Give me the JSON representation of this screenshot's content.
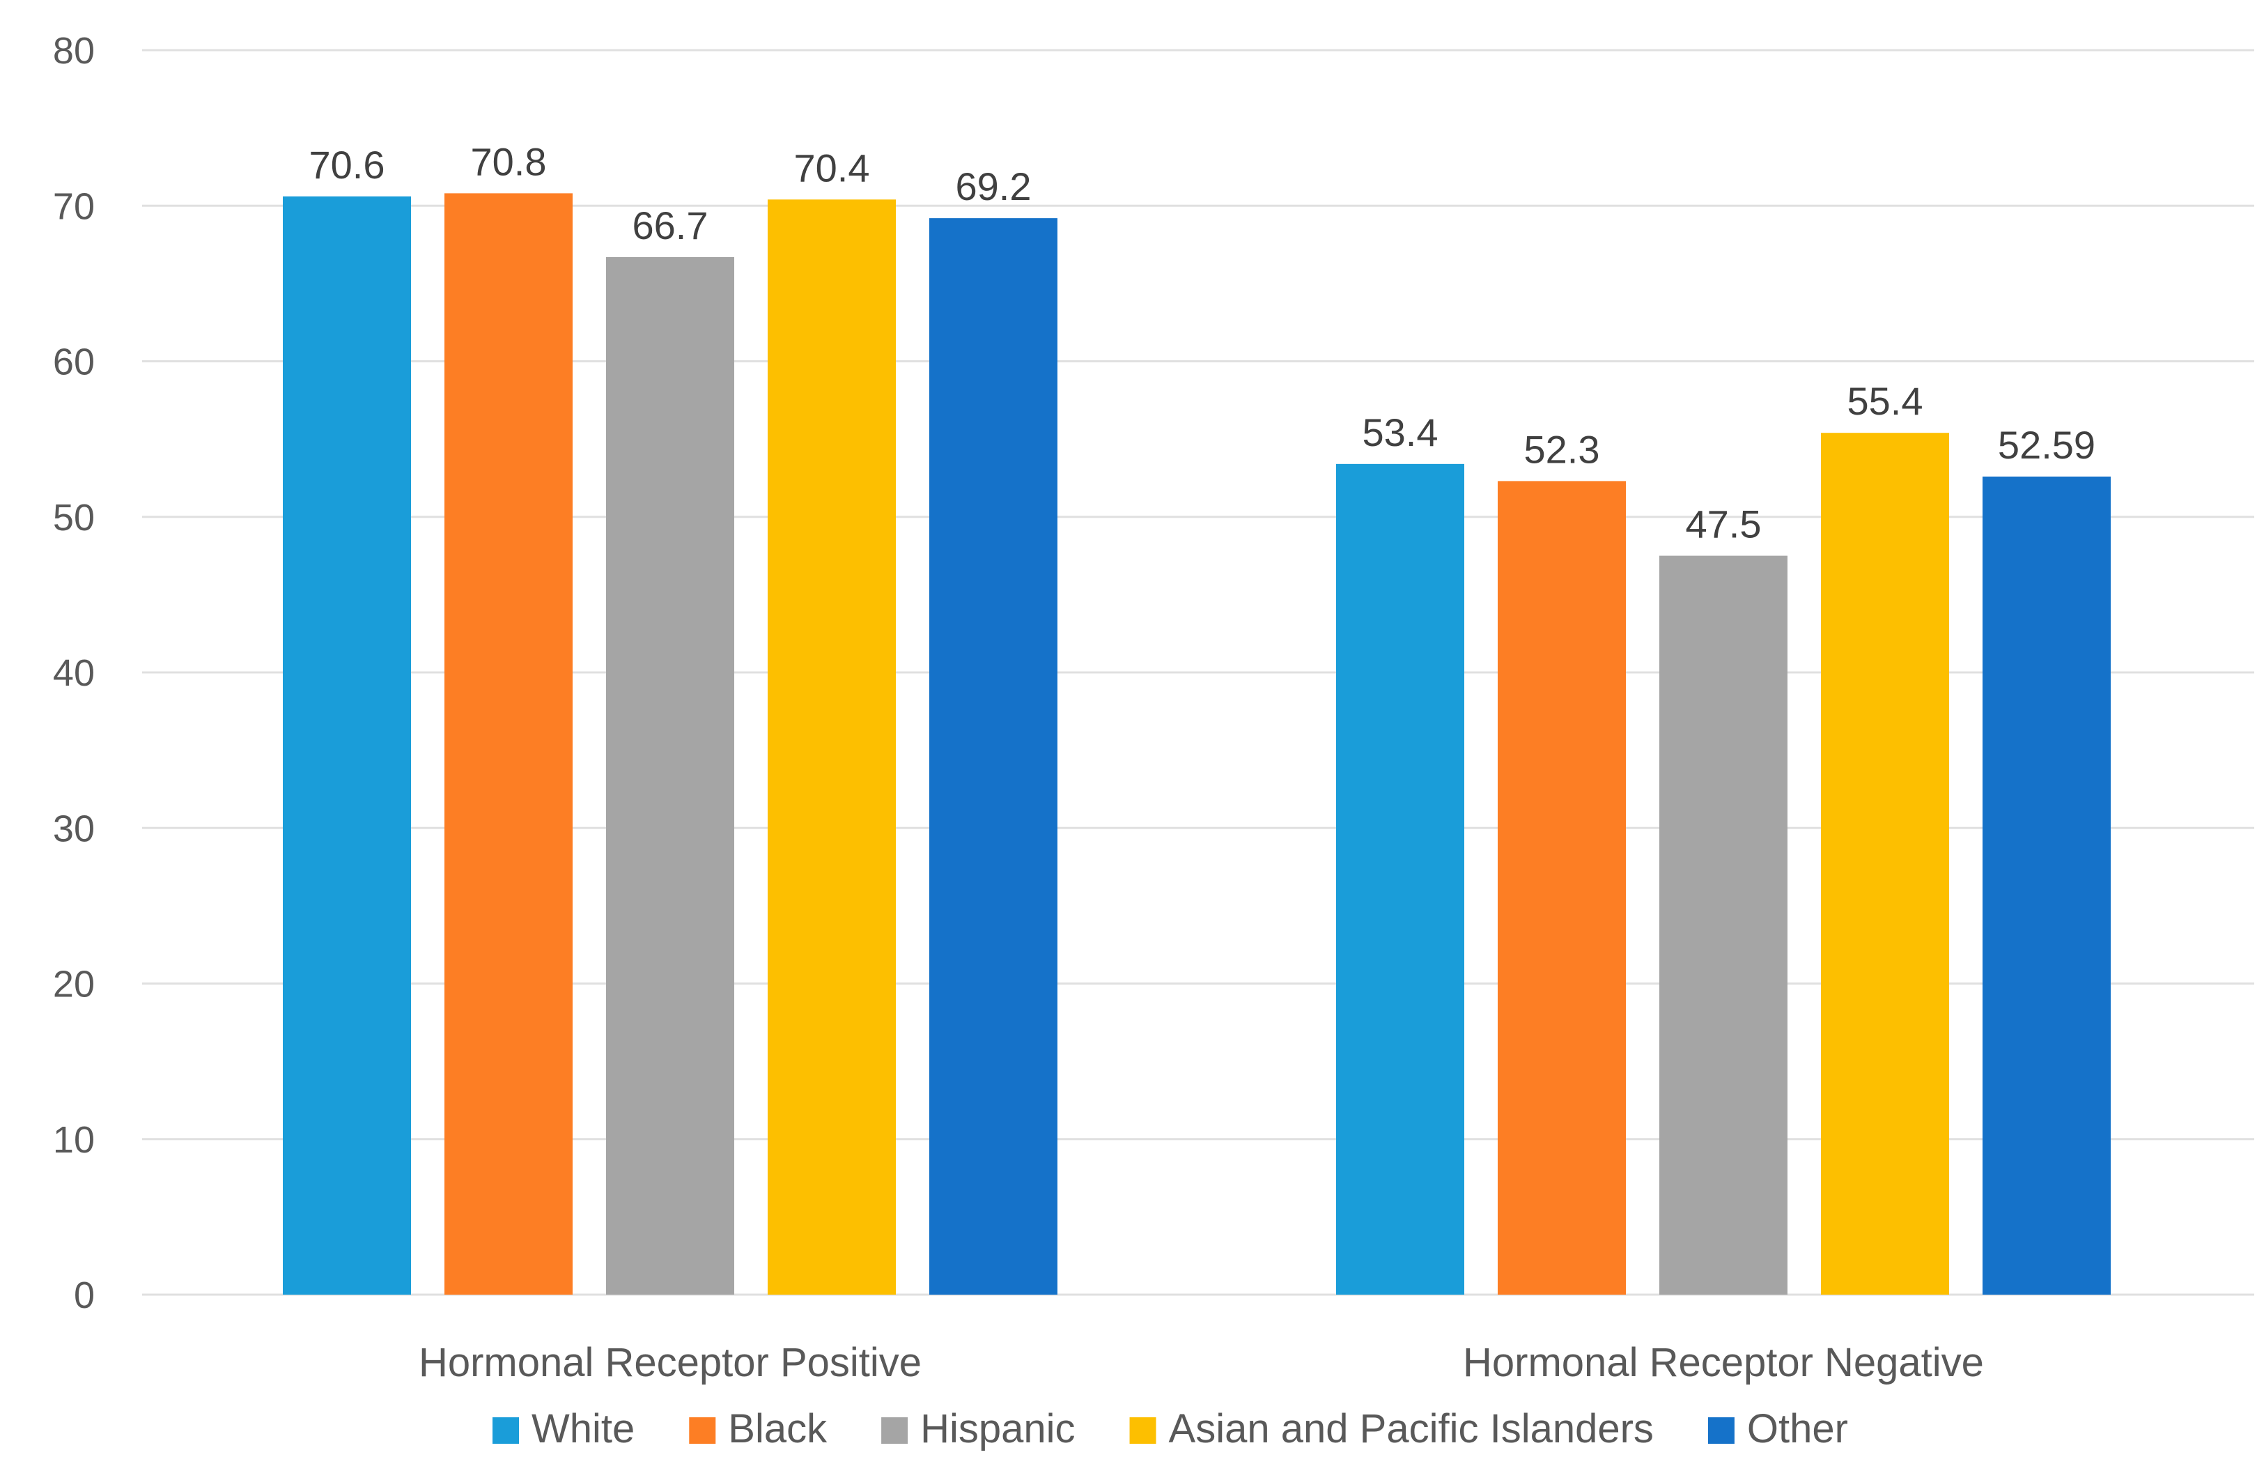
{
  "chart_data": {
    "type": "bar",
    "title": "",
    "xlabel": "",
    "ylabel": "",
    "ylim": [
      0,
      80
    ],
    "yticks": [
      0,
      10,
      20,
      30,
      40,
      50,
      60,
      70,
      80
    ],
    "grid": true,
    "legend_position": "bottom",
    "categories": [
      "Hormonal Receptor Positive",
      "Hormonal Receptor Negative"
    ],
    "series": [
      {
        "name": "White",
        "color": "#1a9dd9",
        "values": [
          70.6,
          53.4
        ],
        "labels": [
          "70.6",
          "53.4"
        ]
      },
      {
        "name": "Black",
        "color": "#fd7e24",
        "values": [
          70.8,
          52.3
        ],
        "labels": [
          "70.8",
          "52.3"
        ]
      },
      {
        "name": "Hispanic",
        "color": "#a5a5a5",
        "values": [
          66.7,
          47.5
        ],
        "labels": [
          "66.7",
          "47.5"
        ]
      },
      {
        "name": "Asian and Pacific Islanders",
        "color": "#fdbf00",
        "values": [
          70.4,
          55.4
        ],
        "labels": [
          "70.4",
          "55.4"
        ]
      },
      {
        "name": "Other",
        "color": "#1572c9",
        "values": [
          69.2,
          52.59
        ],
        "labels": [
          "69.2",
          "52.59"
        ]
      }
    ]
  }
}
